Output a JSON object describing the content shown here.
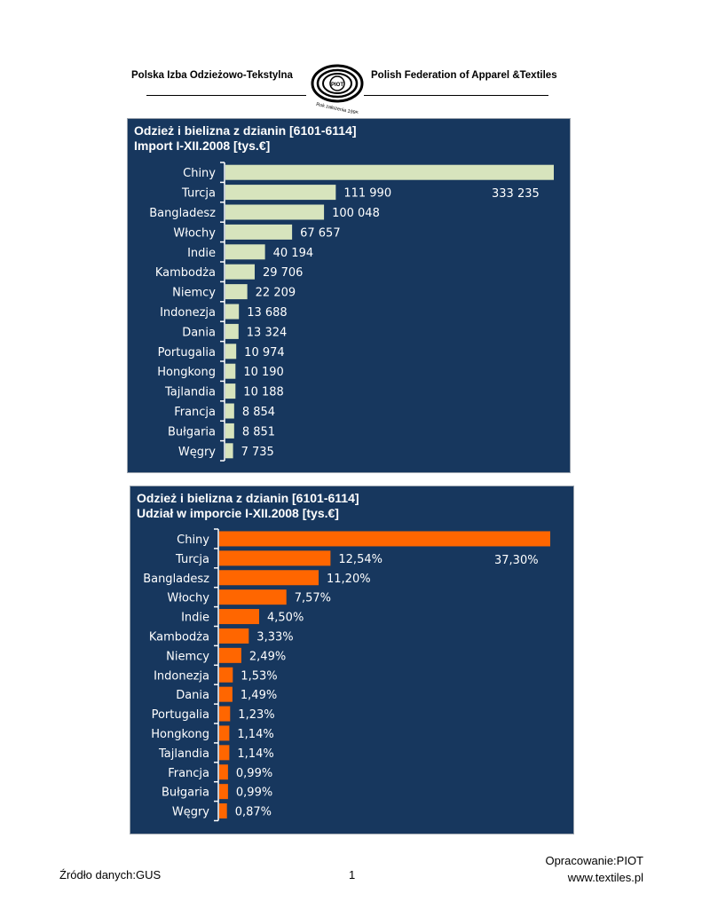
{
  "header": {
    "org_pl": "Polska Izba Odzieżowo-Tekstylna",
    "org_en": "Polish Federation of Apparel &Textiles",
    "logo_text": "PIOT",
    "logo_caption": "Rok założenia 1995"
  },
  "colors": {
    "panel_bg": "#17375e",
    "bar_import": "#d7e4bd",
    "bar_share": "#ff6600",
    "text_on_panel": "#ffffff"
  },
  "chart_data": [
    {
      "type": "bar",
      "orientation": "horizontal",
      "title": "Odzież i bielizna z dzianin [6101-6114]",
      "subtitle": "Import I-XII.2008 [tys.€]",
      "xlabel": "",
      "ylabel": "",
      "grid": false,
      "categories": [
        "Chiny",
        "Turcja",
        "Bangladesz",
        "Włochy",
        "Indie",
        "Kambodża",
        "Niemcy",
        "Indonezja",
        "Dania",
        "Portugalia",
        "Hongkong",
        "Tajlandia",
        "Francja",
        "Bułgaria",
        "Węgry"
      ],
      "values": [
        333235,
        111990,
        100048,
        67657,
        40194,
        29706,
        22209,
        13688,
        13324,
        10974,
        10190,
        10188,
        8854,
        8851,
        7735
      ],
      "data_labels": [
        "333 235",
        "111 990",
        "100 048",
        "67 657",
        "40 194",
        "29 706",
        "22 209",
        "13 688",
        "13 324",
        "10 974",
        "10 190",
        "10 188",
        "8 854",
        "8 851",
        "7 735"
      ],
      "xlim": [
        0,
        333235
      ]
    },
    {
      "type": "bar",
      "orientation": "horizontal",
      "title": "Odzież i bielizna z dzianin [6101-6114]",
      "subtitle": "Udział w imporcie I-XII.2008 [tys.€]",
      "xlabel": "",
      "ylabel": "",
      "grid": false,
      "categories": [
        "Chiny",
        "Turcja",
        "Bangladesz",
        "Włochy",
        "Indie",
        "Kambodża",
        "Niemcy",
        "Indonezja",
        "Dania",
        "Portugalia",
        "Hongkong",
        "Tajlandia",
        "Francja",
        "Bułgaria",
        "Węgry"
      ],
      "values": [
        37.3,
        12.54,
        11.2,
        7.57,
        4.5,
        3.33,
        2.49,
        1.53,
        1.49,
        1.23,
        1.14,
        1.14,
        0.99,
        0.99,
        0.87
      ],
      "data_labels": [
        "37,30%",
        "12,54%",
        "11,20%",
        "7,57%",
        "4,50%",
        "3,33%",
        "2,49%",
        "1,53%",
        "1,49%",
        "1,23%",
        "1,14%",
        "1,14%",
        "0,99%",
        "0,99%",
        "0,87%"
      ],
      "xlim": [
        0,
        37.3
      ]
    }
  ],
  "footer": {
    "source": "Źródło danych:GUS",
    "page_number": "1",
    "prepared_by": "Opracowanie:PIOT",
    "website": "www.textiles.pl"
  }
}
